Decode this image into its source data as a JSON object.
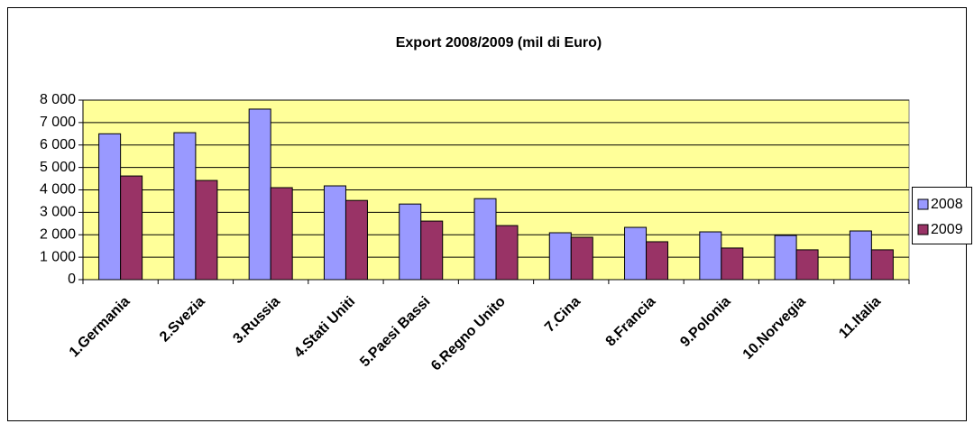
{
  "chart_data": {
    "type": "bar",
    "title": "Export 2008/2009 (mil di Euro)",
    "categories": [
      "1.Germania",
      "2.Svezia",
      "3.Russia",
      "4.Stati Uniti",
      "5.Paesi Bassi",
      "6.Regno Unito",
      "7.Cina",
      "8.Francia",
      "9.Polonia",
      "10.Norvegia",
      "11.Italia"
    ],
    "series": [
      {
        "name": "2008",
        "color": "#9999ff",
        "values": [
          6500,
          6550,
          7600,
          4180,
          3370,
          3610,
          2090,
          2330,
          2130,
          1970,
          2170
        ]
      },
      {
        "name": "2009",
        "color": "#993366",
        "values": [
          4620,
          4420,
          4100,
          3530,
          2610,
          2410,
          1890,
          1690,
          1410,
          1330,
          1330
        ]
      }
    ],
    "ylim": [
      0,
      8000
    ],
    "yticks": [
      0,
      {
        "value": 1000,
        "label": "1 000"
      },
      {
        "value": 2000,
        "label": "2 000"
      },
      {
        "value": 3000,
        "label": "3 000"
      },
      {
        "value": 4000,
        "label": "4 000"
      },
      {
        "value": 5000,
        "label": "5 000"
      },
      {
        "value": 6000,
        "label": "6 000"
      },
      {
        "value": 7000,
        "label": "7 000"
      },
      {
        "value": 8000,
        "label": "8 000"
      }
    ],
    "grid": true,
    "legend": "right",
    "plot_background": "#ffff99"
  }
}
